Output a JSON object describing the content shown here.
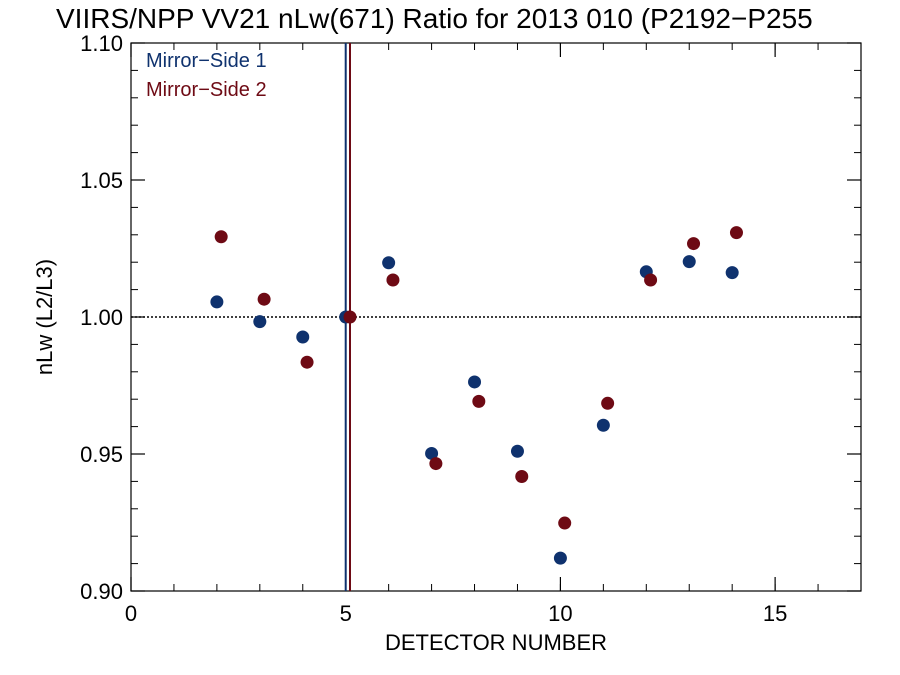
{
  "chart_data": {
    "type": "scatter",
    "title": "VIIRS/NPP VV21 nLw(671) Ratio for 2013 010 (P2192−P255",
    "xlabel": "DETECTOR NUMBER",
    "ylabel": "nLw (L2/L3)",
    "xlim": [
      0,
      17
    ],
    "ylim": [
      0.9,
      1.1
    ],
    "x_ticks": [
      0,
      5,
      10,
      15
    ],
    "x_tick_labels": [
      "0",
      "5",
      "10",
      "15"
    ],
    "y_ticks": [
      0.9,
      0.95,
      1.0,
      1.05,
      1.1
    ],
    "y_tick_labels": [
      "0.90",
      "0.95",
      "1.00",
      "1.05",
      "1.10"
    ],
    "reference_line_y": 1.0,
    "grid": false,
    "legend_position": "top-left",
    "series": [
      {
        "name": "Mirror−Side 1",
        "color": "#0f326e",
        "vertical_line_x": 5.0,
        "x": [
          2,
          3,
          4,
          5,
          6,
          7,
          8,
          9,
          10,
          11,
          12,
          13,
          14
        ],
        "y": [
          1.0055,
          0.9983,
          0.9927,
          1.0,
          1.0198,
          0.9502,
          0.9763,
          0.951,
          0.912,
          0.9605,
          1.0165,
          1.0202,
          1.0162
        ]
      },
      {
        "name": "Mirror−Side 2",
        "color": "#6e0a14",
        "vertical_line_x": 5.1,
        "x": [
          2.1,
          3.1,
          4.1,
          5.1,
          6.1,
          7.1,
          8.1,
          9.1,
          10.1,
          11.1,
          12.1,
          13.1,
          14.1
        ],
        "y": [
          1.0293,
          1.0065,
          0.9835,
          1.0,
          1.0135,
          0.9465,
          0.9692,
          0.9418,
          0.9248,
          0.9685,
          1.0135,
          1.0268,
          1.0308
        ]
      }
    ]
  }
}
